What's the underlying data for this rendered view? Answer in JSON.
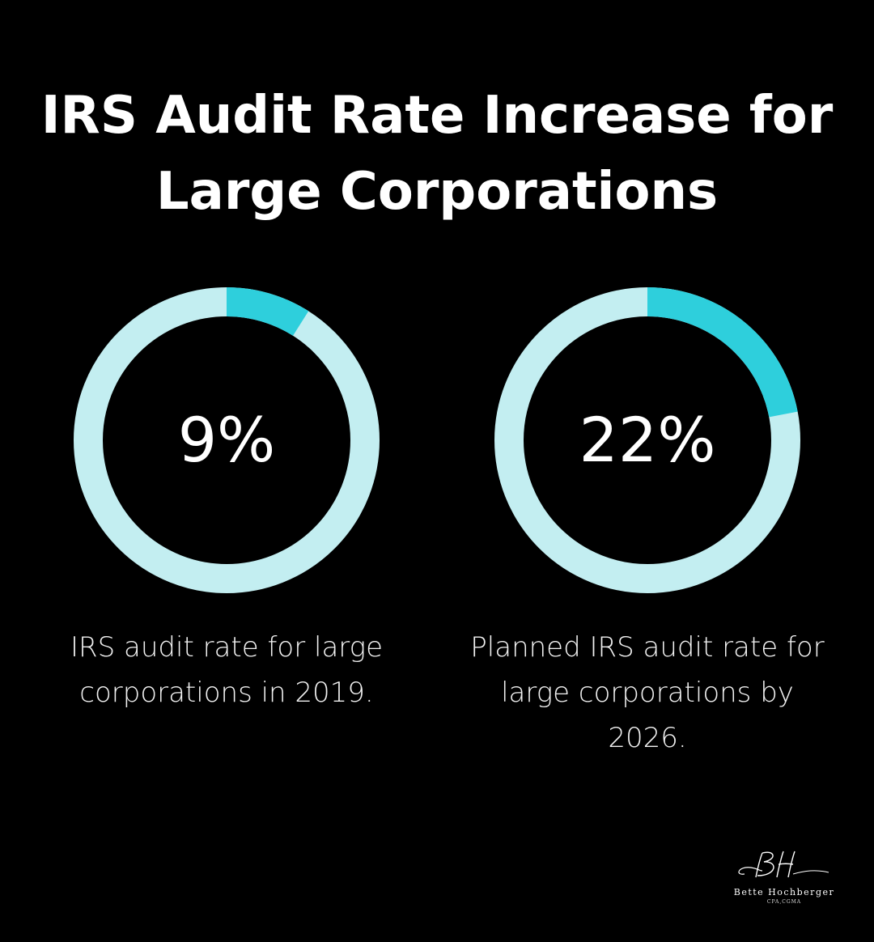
{
  "chart_data": [
    {
      "type": "pie",
      "value": 9,
      "label": "9%",
      "caption_lines": [
        "IRS audit rate for large",
        "corporations in 2019."
      ]
    },
    {
      "type": "pie",
      "value": 22,
      "label": "22%",
      "caption_lines": [
        "Planned IRS audit rate for",
        "large corporations by",
        "2026."
      ]
    }
  ],
  "title_lines": [
    "IRS Audit Rate Increase for",
    "Large Corporations"
  ],
  "colors": {
    "background": "#000000",
    "ring_filled": "#2ecfdc",
    "ring_track": "#c3eef1",
    "text": "#ffffff"
  },
  "logo": {
    "monogram": "BH",
    "name": "Bette Hochberger",
    "credentials": "CPA,CGMA"
  }
}
